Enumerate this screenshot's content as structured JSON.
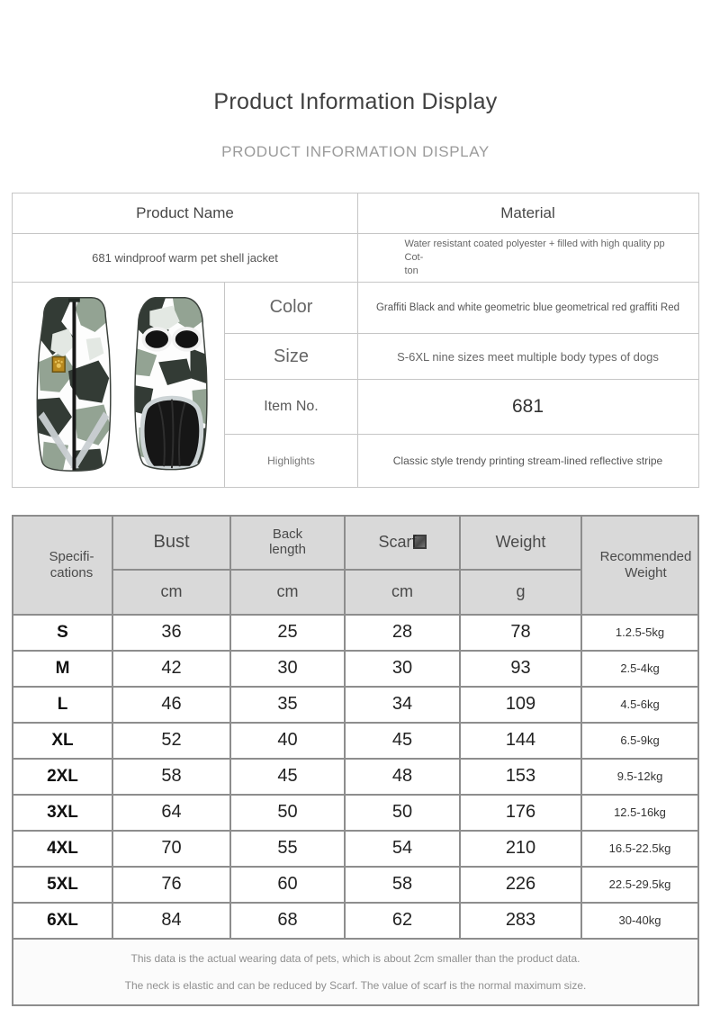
{
  "page": {
    "title": "Product Information Display",
    "subtitle": "PRODUCT INFORMATION DISPLAY"
  },
  "info_table": {
    "product_name_header": "Product Name",
    "material_header": "Material",
    "product_name_value": "681 windproof warm pet shell jacket",
    "material_lines": [
      "Water resistant coated polyester + filled with high quality pp Cot-",
      "ton"
    ],
    "image": "camouflage-pet-jacket-front-and-back",
    "rows": [
      {
        "label": "Color",
        "value": "Graffiti Black and white geometric blue geometrical red graffiti Red"
      },
      {
        "label": "Size",
        "value": "S-6XL nine sizes meet multiple body types of dogs"
      },
      {
        "label": "Item No.",
        "value": "681"
      },
      {
        "label": "Highlights",
        "value": "Classic style trendy printing stream-lined reflective stripe"
      }
    ]
  },
  "size_chart": {
    "type": "table",
    "spec_label_lines": [
      "Specifi-",
      "cations"
    ],
    "columns": {
      "bust": "Bust",
      "back_length_lines": [
        "Back",
        "length"
      ],
      "scarf": "Scarf",
      "weight": "Weight",
      "recommended_lines": [
        "Recommended",
        "Weight"
      ]
    },
    "units": [
      "cm",
      "cm",
      "cm",
      "g"
    ],
    "rows": [
      {
        "size": "S",
        "bust": "36",
        "back_length": "25",
        "scarf": "28",
        "weight": "78",
        "recommended": "1.2.5-5kg"
      },
      {
        "size": "M",
        "bust": "42",
        "back_length": "30",
        "scarf": "30",
        "weight": "93",
        "recommended": "2.5-4kg"
      },
      {
        "size": "L",
        "bust": "46",
        "back_length": "35",
        "scarf": "34",
        "weight": "109",
        "recommended": "4.5-6kg"
      },
      {
        "size": "XL",
        "bust": "52",
        "back_length": "40",
        "scarf": "45",
        "weight": "144",
        "recommended": "6.5-9kg"
      },
      {
        "size": "2XL",
        "bust": "58",
        "back_length": "45",
        "scarf": "48",
        "weight": "153",
        "recommended": "9.5-12kg"
      },
      {
        "size": "3XL",
        "bust": "64",
        "back_length": "50",
        "scarf": "50",
        "weight": "176",
        "recommended": "12.5-16kg"
      },
      {
        "size": "4XL",
        "bust": "70",
        "back_length": "55",
        "scarf": "54",
        "weight": "210",
        "recommended": "16.5-22.5kg"
      },
      {
        "size": "5XL",
        "bust": "76",
        "back_length": "60",
        "scarf": "58",
        "weight": "226",
        "recommended": "22.5-29.5kg"
      },
      {
        "size": "6XL",
        "bust": "84",
        "back_length": "68",
        "scarf": "62",
        "weight": "283",
        "recommended": "30-40kg"
      }
    ]
  },
  "notes": [
    "This data is the actual wearing data of pets, which is about 2cm smaller than the product data.",
    "The neck is elastic and can be reduced by Scarf. The value of scarf is the normal maximum size."
  ],
  "colors": {
    "header_bg": "#d9d9d9",
    "grid_border": "#8d8d8d",
    "light_border": "#c6c6c6",
    "camo_dark": "#333b35",
    "camo_sage": "#93a393",
    "camo_light": "#e3e8e3",
    "patch_gold": "#b8891f"
  }
}
